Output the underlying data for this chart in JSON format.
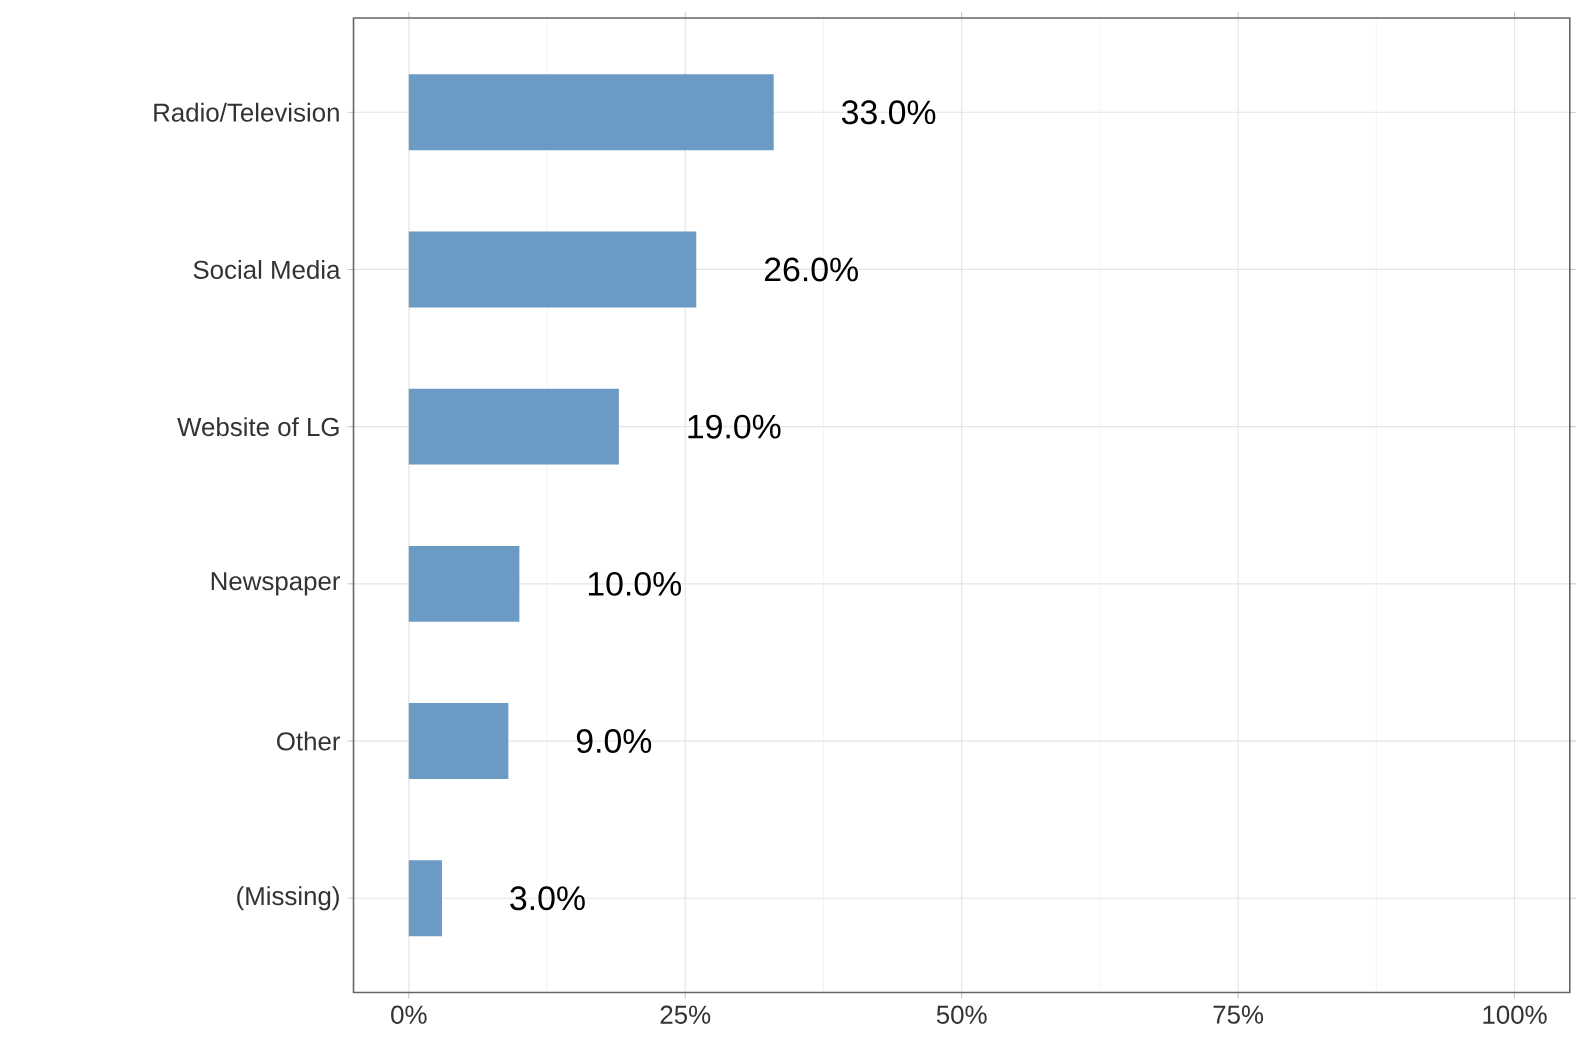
{
  "chart_data": {
    "type": "bar",
    "orientation": "horizontal",
    "categories": [
      "Radio/Television",
      "Social Media",
      "Website of LG",
      "Newspaper",
      "Other",
      "(Missing)"
    ],
    "values": [
      33,
      26,
      19,
      10,
      9,
      3
    ],
    "value_labels": [
      "33.0%",
      "26.0%",
      "19.0%",
      "10.0%",
      "9.0%",
      "3.0%"
    ],
    "color": "#6b9ac4",
    "xlim": [
      -5,
      105
    ],
    "xticks": [
      {
        "value": 0,
        "label": "0%"
      },
      {
        "value": 25,
        "label": "25%"
      },
      {
        "value": 50,
        "label": "50%"
      },
      {
        "value": 75,
        "label": "75%"
      },
      {
        "value": 100,
        "label": "100%"
      }
    ],
    "grid": true
  }
}
